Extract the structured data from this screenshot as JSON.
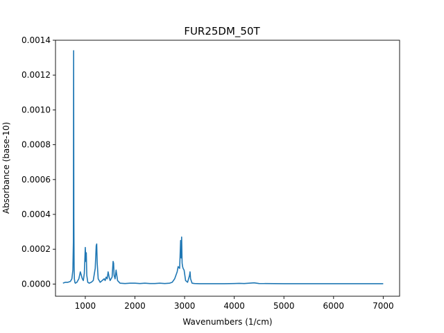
{
  "chart_data": {
    "type": "line",
    "title": "FUR25DM_50T",
    "xlabel": "Wavenumbers (1/cm)",
    "ylabel": "Absorbance (base-10)",
    "xlim": [
      400,
      7330
    ],
    "ylim": [
      -7e-05,
      0.0014
    ],
    "xticks": [
      "1000",
      "2000",
      "3000",
      "4000",
      "5000",
      "6000",
      "7000"
    ],
    "yticks": [
      "0.0000",
      "0.0002",
      "0.0004",
      "0.0006",
      "0.0008",
      "0.0010",
      "0.0012",
      "0.0014"
    ],
    "grid": false,
    "line_color": "#1f77b4",
    "series": [
      {
        "x": [
          550,
          600,
          650,
          700,
          730,
          750,
          760,
          765,
          770,
          775,
          780,
          790,
          800,
          830,
          870,
          900,
          920,
          940,
          960,
          980,
          1000,
          1010,
          1020,
          1030,
          1050,
          1080,
          1120,
          1160,
          1200,
          1220,
          1230,
          1240,
          1260,
          1300,
          1340,
          1380,
          1400,
          1420,
          1440,
          1460,
          1480,
          1500,
          1540,
          1560,
          1570,
          1580,
          1600,
          1620,
          1630,
          1650,
          1700,
          1800,
          1900,
          2000,
          2100,
          2200,
          2250,
          2300,
          2400,
          2500,
          2600,
          2700,
          2750,
          2800,
          2850,
          2870,
          2900,
          2920,
          2930,
          2940,
          2950,
          2960,
          2970,
          2990,
          3020,
          3060,
          3100,
          3110,
          3120,
          3150,
          3200,
          3300,
          3400,
          3500,
          3600,
          3700,
          3800,
          4000,
          4100,
          4200,
          4300,
          4400,
          4500,
          5000,
          5500,
          6000,
          6500,
          7000
        ],
        "values": [
          5e-06,
          1e-05,
          1e-05,
          1.5e-05,
          3e-05,
          8e-05,
          0.00024,
          0.00134,
          0.00038,
          0.0001,
          3e-05,
          1e-05,
          5e-06,
          1e-05,
          3e-05,
          7e-05,
          5e-05,
          3e-05,
          2e-05,
          6e-05,
          0.00021,
          0.00013,
          0.00018,
          5e-05,
          1e-05,
          5e-06,
          1e-05,
          2e-05,
          9e-05,
          0.00022,
          0.00023,
          0.00012,
          3e-05,
          1e-05,
          2e-05,
          3e-05,
          2e-05,
          4e-05,
          3e-05,
          7e-05,
          4e-05,
          2e-05,
          4e-05,
          0.00013,
          0.00012,
          5e-05,
          3e-05,
          8e-05,
          6e-05,
          2e-05,
          5e-06,
          3e-06,
          5e-06,
          5e-06,
          3e-06,
          5e-06,
          4e-06,
          3e-06,
          3e-06,
          5e-06,
          3e-06,
          5e-06,
          1e-05,
          3e-05,
          7e-05,
          0.0001,
          9e-05,
          0.00025,
          0.00015,
          0.00027,
          0.00012,
          0.0001,
          9e-05,
          8e-05,
          2e-05,
          1e-05,
          5e-05,
          7e-05,
          3e-05,
          5e-06,
          3e-06,
          2e-06,
          2e-06,
          2e-06,
          2e-06,
          2e-06,
          2e-06,
          3e-06,
          4e-06,
          3e-06,
          5e-06,
          7e-06,
          3e-06,
          2e-06,
          2e-06,
          2e-06,
          2e-06,
          2e-06
        ]
      }
    ]
  }
}
